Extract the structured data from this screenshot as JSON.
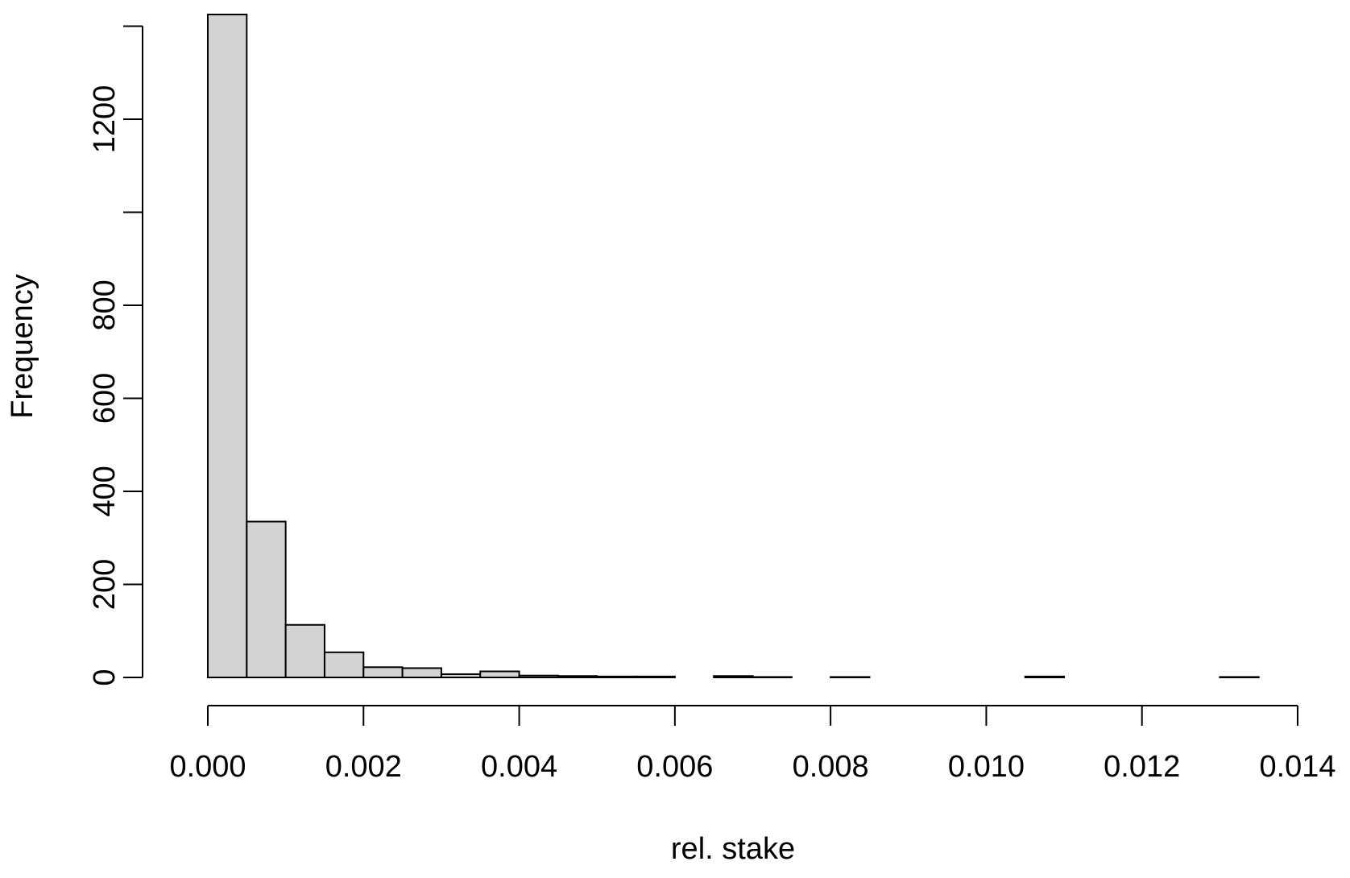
{
  "chart_data": {
    "type": "histogram",
    "x_label": "rel. stake",
    "y_label": "Frequency",
    "bins": [
      0,
      0.0005,
      0.001,
      0.0015,
      0.002,
      0.0025,
      0.003,
      0.0035,
      0.004,
      0.0045,
      0.005,
      0.0055,
      0.006,
      0.0065,
      0.007,
      0.0075,
      0.008,
      0.0085,
      0.009,
      0.0095,
      0.01,
      0.0105,
      0.011,
      0.0115,
      0.012,
      0.0125,
      0.013,
      0.0135
    ],
    "values": [
      1425,
      335,
      113,
      54,
      22,
      20,
      7,
      13,
      4,
      3,
      2,
      2,
      0,
      3,
      1,
      0,
      1,
      0,
      0,
      0,
      0,
      2,
      0,
      0,
      0,
      0,
      1
    ],
    "color": "#d3d3d3",
    "xlim": [
      0,
      0.014
    ],
    "xticks": [
      {
        "value": 0,
        "label": "0.000"
      },
      {
        "value": 0.002,
        "label": "0.002"
      },
      {
        "value": 0.004,
        "label": "0.004"
      },
      {
        "value": 0.006,
        "label": "0.006"
      },
      {
        "value": 0.008,
        "label": "0.008"
      },
      {
        "value": 0.01,
        "label": "0.010"
      },
      {
        "value": 0.012,
        "label": "0.012"
      },
      {
        "value": 0.014,
        "label": "0.014"
      }
    ],
    "ylim": [
      0,
      1425
    ],
    "yticks": [
      0,
      200,
      400,
      600,
      800,
      {
        "value": 1000,
        "label": null
      },
      1200,
      {
        "value": 1400,
        "label": null
      }
    ]
  }
}
